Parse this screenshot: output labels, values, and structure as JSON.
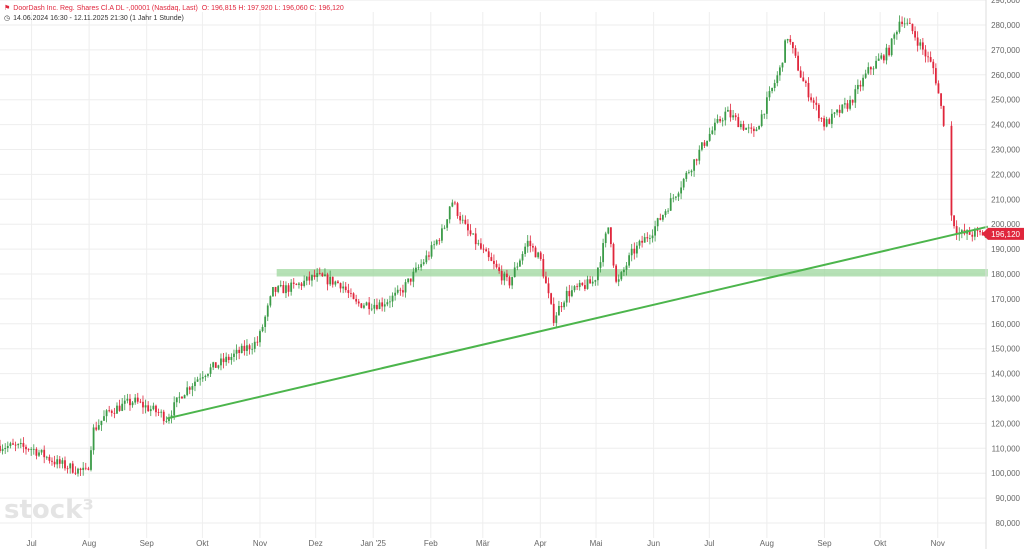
{
  "header": {
    "title": "DoorDash Inc. Reg. Shares Cl.A DL -,00001 (Nasdaq, Last)",
    "ohlc": "O: 196,815  H: 197,920  L: 196,060  C: 196,120",
    "range": "14.06.2024 16:30 - 12.11.2025 21:30  (1 Jahr 1 Stunde)",
    "flag_icon": "chart-flag-icon",
    "clock_icon": "clock-icon"
  },
  "watermark": {
    "text": "stock³"
  },
  "colors": {
    "up": "#3b9b48",
    "down": "#e0263c",
    "trendline": "#4cb54c",
    "zone": "#9ed79e",
    "last_price_bg": "#e0263c",
    "grid": "#eeeeee"
  },
  "last_price": {
    "label": "196,120",
    "value": 196.12
  },
  "chart_data": {
    "type": "candlestick",
    "title": "DoorDash Inc. Reg. Shares Cl.A DL -,00001 (Nasdaq, Last)",
    "x_ticks": [
      "Jul",
      "Aug",
      "Sep",
      "Okt",
      "Nov",
      "Dez",
      "Jan '25",
      "Feb",
      "Mär",
      "Apr",
      "Mai",
      "Jun",
      "Jul",
      "Aug",
      "Sep",
      "Okt",
      "Nov"
    ],
    "y_ticks": [
      "80,000",
      "90,000",
      "100,000",
      "110,000",
      "120,000",
      "130,000",
      "140,000",
      "150,000",
      "160,000",
      "170,000",
      "180,000",
      "190,000",
      "200,000",
      "210,000",
      "220,000",
      "230,000",
      "240,000",
      "250,000",
      "260,000",
      "270,000",
      "280,000",
      "290,000"
    ],
    "y_range": [
      80,
      290
    ],
    "x_range": [
      "2024-06-14",
      "2025-11-12"
    ],
    "price_path": [
      [
        "2024-06-14",
        111
      ],
      [
        "2024-07-01",
        110
      ],
      [
        "2024-07-15",
        104
      ],
      [
        "2024-07-31",
        100
      ],
      [
        "2024-08-03",
        117
      ],
      [
        "2024-08-12",
        125
      ],
      [
        "2024-08-25",
        129
      ],
      [
        "2024-09-08",
        124
      ],
      [
        "2024-09-12",
        122
      ],
      [
        "2024-09-20",
        132
      ],
      [
        "2024-10-01",
        140
      ],
      [
        "2024-10-15",
        146
      ],
      [
        "2024-10-31",
        153
      ],
      [
        "2024-11-08",
        173
      ],
      [
        "2024-11-20",
        175
      ],
      [
        "2024-12-01",
        179
      ],
      [
        "2024-12-15",
        176
      ],
      [
        "2024-12-22",
        168
      ],
      [
        "2025-01-05",
        168
      ],
      [
        "2025-01-15",
        172
      ],
      [
        "2025-01-31",
        188
      ],
      [
        "2025-02-08",
        198
      ],
      [
        "2025-02-12",
        210
      ],
      [
        "2025-02-20",
        198
      ],
      [
        "2025-03-05",
        185
      ],
      [
        "2025-03-15",
        176
      ],
      [
        "2025-03-25",
        193
      ],
      [
        "2025-04-01",
        186
      ],
      [
        "2025-04-08",
        162
      ],
      [
        "2025-04-15",
        172
      ],
      [
        "2025-04-30",
        177
      ],
      [
        "2025-05-08",
        200
      ],
      [
        "2025-05-12",
        175
      ],
      [
        "2025-05-20",
        188
      ],
      [
        "2025-06-01",
        198
      ],
      [
        "2025-06-15",
        215
      ],
      [
        "2025-06-30",
        235
      ],
      [
        "2025-07-10",
        245
      ],
      [
        "2025-07-25",
        236
      ],
      [
        "2025-08-08",
        262
      ],
      [
        "2025-08-12",
        276
      ],
      [
        "2025-08-20",
        258
      ],
      [
        "2025-09-01",
        240
      ],
      [
        "2025-09-15",
        249
      ],
      [
        "2025-09-25",
        262
      ],
      [
        "2025-10-06",
        270
      ],
      [
        "2025-10-12",
        283
      ],
      [
        "2025-10-18",
        278
      ],
      [
        "2025-10-30",
        262
      ],
      [
        "2025-11-05",
        238
      ],
      [
        "2025-11-07",
        206
      ],
      [
        "2025-11-12",
        196.12
      ]
    ],
    "trendline": {
      "start": [
        "2024-09-12",
        122
      ],
      "end": [
        "2025-11-28",
        199
      ]
    },
    "support_zone": {
      "start": "2024-11-10",
      "end": "2025-11-28",
      "low": 179,
      "high": 182
    },
    "grid": true
  }
}
